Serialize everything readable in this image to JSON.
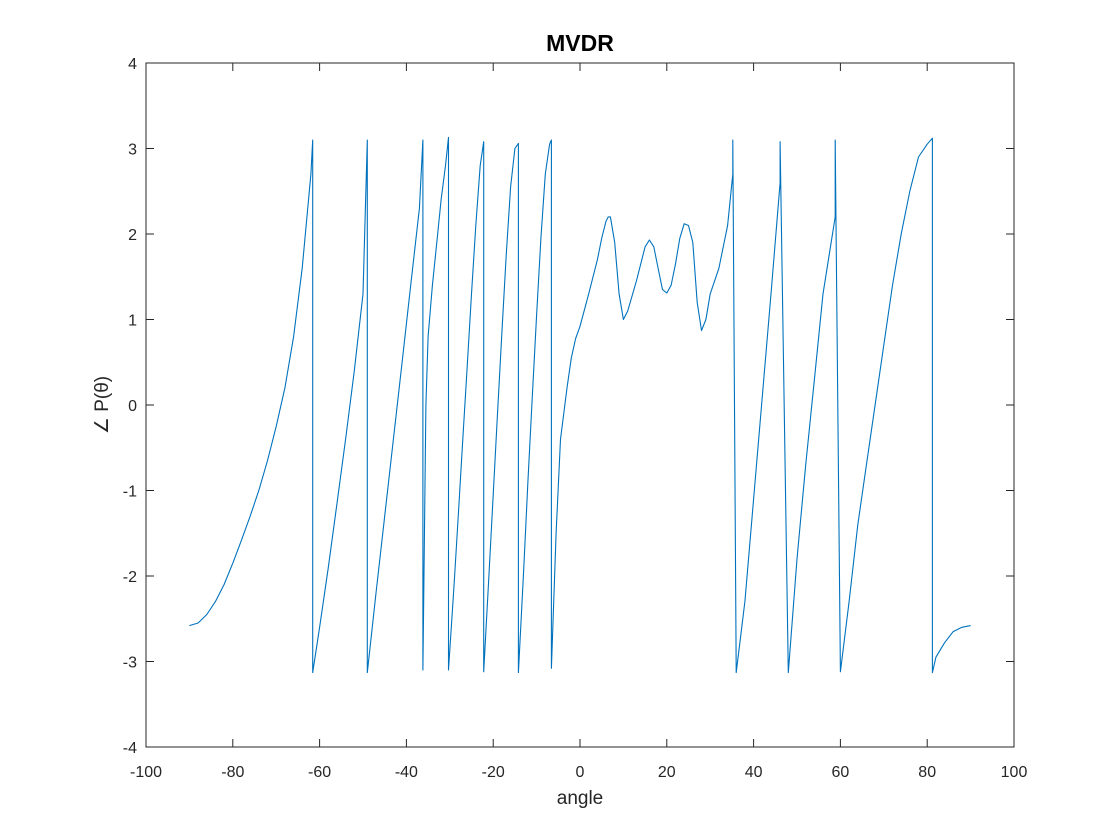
{
  "chart_data": {
    "type": "line",
    "title": "MVDR",
    "xlabel": "angle",
    "ylabel": "∠ P(θ)",
    "xlim": [
      -100,
      100
    ],
    "ylim": [
      -4,
      4
    ],
    "xticks": [
      -100,
      -80,
      -60,
      -40,
      -20,
      0,
      20,
      40,
      60,
      80,
      100
    ],
    "yticks": [
      -4,
      -3,
      -2,
      -1,
      0,
      1,
      2,
      3,
      4
    ],
    "grid": false,
    "line_color": "#0072BD",
    "series": [
      {
        "x": [
          -90,
          -88,
          -86,
          -84,
          -82,
          -80,
          -78,
          -76,
          -74,
          -72,
          -70,
          -68,
          -66,
          -64,
          -62,
          -61.6,
          -61.6,
          -60,
          -58,
          -56,
          -54,
          -52,
          -50,
          -49,
          -49,
          -47,
          -45,
          -43,
          -41,
          -39,
          -37,
          -36.2,
          -36.2,
          -35.5,
          -35,
          -34,
          -33,
          -32,
          -31,
          -30.3,
          -30.3,
          -29,
          -28,
          -27,
          -26,
          -25,
          -24,
          -23,
          -22.2,
          -22.2,
          -21,
          -20,
          -19,
          -18,
          -17,
          -16,
          -15,
          -14.2,
          -14.2,
          -13,
          -12,
          -11,
          -10,
          -9,
          -8,
          -7,
          -6.6,
          -6.6,
          -5.5,
          -4.5,
          -3,
          -2,
          -1,
          0,
          2,
          4,
          5,
          6,
          6.5,
          7,
          8,
          9,
          10,
          11,
          13,
          15,
          16,
          17,
          18,
          19,
          20,
          21,
          22,
          23,
          24,
          25,
          26,
          27,
          28,
          29,
          30,
          32,
          34,
          35.2,
          35.2,
          36,
          38,
          40,
          42,
          44,
          46.1,
          46.1,
          48,
          50,
          52,
          54,
          56,
          58.8,
          58.8,
          60,
          62,
          64,
          66,
          68,
          70,
          72,
          74,
          76,
          78,
          80,
          81.2,
          81.2,
          82,
          84,
          86,
          88,
          90
        ],
        "y": [
          -2.58,
          -2.55,
          -2.45,
          -2.3,
          -2.1,
          -1.85,
          -1.58,
          -1.3,
          -1.0,
          -0.65,
          -0.25,
          0.2,
          0.8,
          1.6,
          2.7,
          3.1,
          -3.13,
          -2.6,
          -1.9,
          -1.15,
          -0.4,
          0.4,
          1.3,
          3.1,
          -3.13,
          -2.2,
          -1.3,
          -0.4,
          0.5,
          1.4,
          2.3,
          3.1,
          -3.1,
          0.0,
          0.8,
          1.4,
          1.9,
          2.4,
          2.8,
          3.13,
          -3.1,
          -2.1,
          -1.25,
          -0.4,
          0.45,
          1.3,
          2.1,
          2.8,
          3.08,
          -3.12,
          -2.0,
          -1.05,
          -0.1,
          0.85,
          1.75,
          2.55,
          3.0,
          3.06,
          -3.13,
          -1.95,
          -0.9,
          0.1,
          1.05,
          1.95,
          2.7,
          3.05,
          3.1,
          -3.08,
          -1.5,
          -0.4,
          0.2,
          0.55,
          0.78,
          0.92,
          1.3,
          1.7,
          1.95,
          2.15,
          2.2,
          2.2,
          1.9,
          1.3,
          1.0,
          1.1,
          1.45,
          1.85,
          1.93,
          1.85,
          1.6,
          1.35,
          1.31,
          1.4,
          1.65,
          1.95,
          2.12,
          2.1,
          1.9,
          1.2,
          0.87,
          1.0,
          1.3,
          1.6,
          2.1,
          2.7,
          3.1,
          -3.13,
          -2.3,
          -1.1,
          0.1,
          1.3,
          2.6,
          3.08,
          -3.13,
          -1.8,
          -0.7,
          0.3,
          1.3,
          2.2,
          3.1,
          -3.12,
          -2.3,
          -1.4,
          -0.7,
          0.0,
          0.7,
          1.4,
          2.0,
          2.5,
          2.9,
          3.05,
          3.12,
          -3.13,
          -2.95,
          -2.78,
          -2.65,
          -2.6,
          -2.58
        ]
      }
    ]
  }
}
